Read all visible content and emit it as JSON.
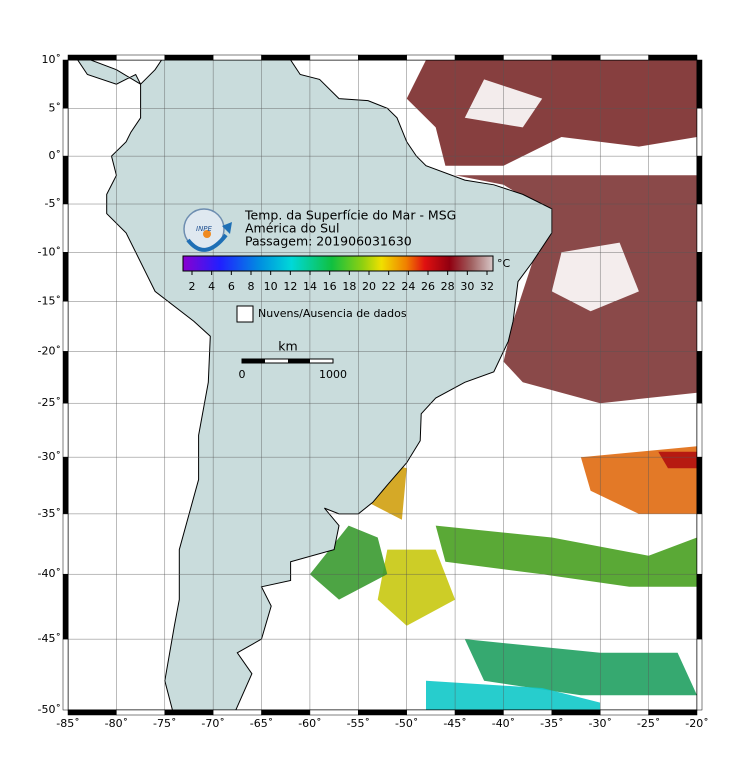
{
  "header": {
    "title": "Temp. da Superfície do Mar - MSG",
    "region": "América do Sul",
    "pass": "Passagem: 201906031630"
  },
  "colorbar": {
    "unit": "°C",
    "ticks": [
      2,
      4,
      6,
      8,
      10,
      12,
      14,
      16,
      18,
      20,
      22,
      24,
      26,
      28,
      30,
      32
    ]
  },
  "legend": {
    "label": "Nuvens/Ausencia de dados"
  },
  "scale": {
    "unit": "km",
    "ticks": [
      0,
      1000
    ]
  },
  "lon_ticks": [
    {
      "value": -85,
      "label": "-85˚"
    },
    {
      "value": -80,
      "label": "-80˚"
    },
    {
      "value": -75,
      "label": "-75˚"
    },
    {
      "value": -70,
      "label": "-70˚"
    },
    {
      "value": -65,
      "label": "-65˚"
    },
    {
      "value": -60,
      "label": "-60˚"
    },
    {
      "value": -55,
      "label": "-55˚"
    },
    {
      "value": -50,
      "label": "-50˚"
    },
    {
      "value": -45,
      "label": "-45˚"
    },
    {
      "value": -40,
      "label": "-40˚"
    },
    {
      "value": -35,
      "label": "-35˚"
    },
    {
      "value": -30,
      "label": "-30˚"
    },
    {
      "value": -25,
      "label": "-25˚"
    },
    {
      "value": -20,
      "label": "-20˚"
    }
  ],
  "lat_ticks": [
    {
      "value": 10,
      "label": "10˚"
    },
    {
      "value": 5,
      "label": "5˚"
    },
    {
      "value": 0,
      "label": "0˚"
    },
    {
      "value": -5,
      "label": "-5˚"
    },
    {
      "value": -10,
      "label": "-10˚"
    },
    {
      "value": -15,
      "label": "-15˚"
    },
    {
      "value": -20,
      "label": "-20˚"
    },
    {
      "value": -25,
      "label": "-25˚"
    },
    {
      "value": -30,
      "label": "-30˚"
    },
    {
      "value": -35,
      "label": "-35˚"
    },
    {
      "value": -40,
      "label": "-40˚"
    },
    {
      "value": -45,
      "label": "-45˚"
    },
    {
      "value": -50,
      "label": "-50˚"
    }
  ]
}
